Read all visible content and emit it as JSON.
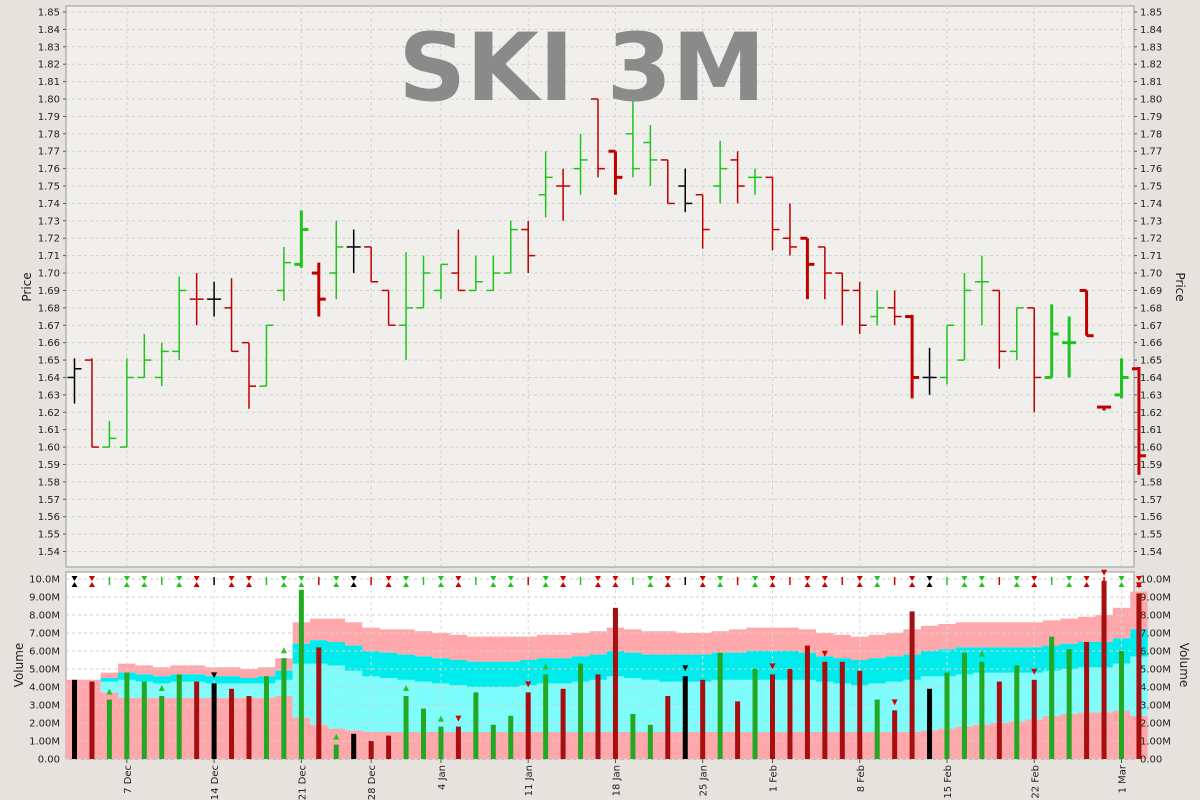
{
  "chart_data": {
    "type": "ohlc",
    "title": "SKI 3M",
    "price_panel": {
      "ylabel": "Price",
      "ylim": [
        1.53,
        1.85
      ],
      "tick_step": 0.01,
      "grid": true
    },
    "volume_panel": {
      "ylabel": "Volume",
      "ylim": [
        0,
        10000000
      ],
      "tick_labels": [
        "0.00",
        "1.00M",
        "2.00M",
        "3.00M",
        "4.00M",
        "5.00M",
        "6.00M",
        "7.00M",
        "8.00M",
        "9.00M",
        "10.0M"
      ],
      "grid": true
    },
    "x_tick_labels": [
      {
        "label": "7 Dec",
        "bar": 3
      },
      {
        "label": "14 Dec",
        "bar": 8
      },
      {
        "label": "21 Dec",
        "bar": 13
      },
      {
        "label": "28 Dec",
        "bar": 17
      },
      {
        "label": "4 Jan",
        "bar": 21
      },
      {
        "label": "11 Jan",
        "bar": 26
      },
      {
        "label": "18 Jan",
        "bar": 31
      },
      {
        "label": "25 Jan",
        "bar": 36
      },
      {
        "label": "1 Feb",
        "bar": 40
      },
      {
        "label": "8 Feb",
        "bar": 45
      },
      {
        "label": "15 Feb",
        "bar": 50
      },
      {
        "label": "22 Feb",
        "bar": 55
      },
      {
        "label": "1 Mar",
        "bar": 60
      }
    ],
    "colors": {
      "up": "#1ec41e",
      "down": "#c00000",
      "unchanged": "#000000",
      "band_outer": "#ffa8ab",
      "band_mid": "#7ffcfc",
      "band_inner": "#00ecec",
      "title": "#8a8a8a"
    },
    "bars": [
      {
        "o": 1.64,
        "h": 1.651,
        "l": 1.625,
        "c": 1.645,
        "v": 4.4,
        "d": "n"
      },
      {
        "o": 1.65,
        "h": 1.651,
        "l": 1.6,
        "c": 1.6,
        "v": 4.3,
        "d": "d"
      },
      {
        "o": 1.6,
        "h": 1.615,
        "l": 1.6,
        "c": 1.605,
        "v": 3.3,
        "d": "u"
      },
      {
        "o": 1.6,
        "h": 1.651,
        "l": 1.6,
        "c": 1.64,
        "v": 4.8,
        "d": "u"
      },
      {
        "o": 1.64,
        "h": 1.665,
        "l": 1.64,
        "c": 1.65,
        "v": 4.3,
        "d": "u"
      },
      {
        "o": 1.64,
        "h": 1.66,
        "l": 1.635,
        "c": 1.655,
        "v": 3.5,
        "d": "u"
      },
      {
        "o": 1.655,
        "h": 1.698,
        "l": 1.65,
        "c": 1.69,
        "v": 4.7,
        "d": "u"
      },
      {
        "o": 1.685,
        "h": 1.7,
        "l": 1.67,
        "c": 1.685,
        "v": 4.3,
        "d": "d"
      },
      {
        "o": 1.685,
        "h": 1.695,
        "l": 1.675,
        "c": 1.685,
        "v": 4.2,
        "d": "n"
      },
      {
        "o": 1.68,
        "h": 1.697,
        "l": 1.655,
        "c": 1.655,
        "v": 3.9,
        "d": "d"
      },
      {
        "o": 1.66,
        "h": 1.66,
        "l": 1.622,
        "c": 1.635,
        "v": 3.5,
        "d": "d"
      },
      {
        "o": 1.635,
        "h": 1.67,
        "l": 1.635,
        "c": 1.67,
        "v": 4.6,
        "d": "u"
      },
      {
        "o": 1.69,
        "h": 1.715,
        "l": 1.684,
        "c": 1.706,
        "v": 5.6,
        "d": "u"
      },
      {
        "o": 1.705,
        "h": 1.736,
        "l": 1.703,
        "c": 1.725,
        "v": 9.4,
        "d": "u"
      },
      {
        "o": 1.7,
        "h": 1.706,
        "l": 1.675,
        "c": 1.685,
        "v": 6.2,
        "d": "d"
      },
      {
        "o": 1.7,
        "h": 1.73,
        "l": 1.685,
        "c": 1.715,
        "v": 0.8,
        "d": "u"
      },
      {
        "o": 1.715,
        "h": 1.725,
        "l": 1.7,
        "c": 1.715,
        "v": 1.4,
        "d": "n"
      },
      {
        "o": 1.715,
        "h": 1.715,
        "l": 1.695,
        "c": 1.695,
        "v": 1.0,
        "d": "d"
      },
      {
        "o": 1.69,
        "h": 1.69,
        "l": 1.67,
        "c": 1.67,
        "v": 1.3,
        "d": "d"
      },
      {
        "o": 1.67,
        "h": 1.712,
        "l": 1.65,
        "c": 1.68,
        "v": 3.5,
        "d": "u"
      },
      {
        "o": 1.68,
        "h": 1.71,
        "l": 1.68,
        "c": 1.7,
        "v": 2.8,
        "d": "u"
      },
      {
        "o": 1.69,
        "h": 1.705,
        "l": 1.685,
        "c": 1.705,
        "v": 1.8,
        "d": "u"
      },
      {
        "o": 1.7,
        "h": 1.725,
        "l": 1.69,
        "c": 1.69,
        "v": 1.8,
        "d": "d"
      },
      {
        "o": 1.69,
        "h": 1.71,
        "l": 1.69,
        "c": 1.695,
        "v": 3.7,
        "d": "u"
      },
      {
        "o": 1.69,
        "h": 1.71,
        "l": 1.69,
        "c": 1.7,
        "v": 1.9,
        "d": "u"
      },
      {
        "o": 1.7,
        "h": 1.73,
        "l": 1.7,
        "c": 1.725,
        "v": 2.4,
        "d": "u"
      },
      {
        "o": 1.725,
        "h": 1.73,
        "l": 1.7,
        "c": 1.71,
        "v": 3.7,
        "d": "d"
      },
      {
        "o": 1.745,
        "h": 1.77,
        "l": 1.732,
        "c": 1.755,
        "v": 4.7,
        "d": "u"
      },
      {
        "o": 1.75,
        "h": 1.76,
        "l": 1.73,
        "c": 1.75,
        "v": 3.9,
        "d": "d"
      },
      {
        "o": 1.76,
        "h": 1.78,
        "l": 1.745,
        "c": 1.765,
        "v": 5.3,
        "d": "u"
      },
      {
        "o": 1.8,
        "h": 1.8,
        "l": 1.755,
        "c": 1.76,
        "v": 4.7,
        "d": "d"
      },
      {
        "o": 1.77,
        "h": 1.77,
        "l": 1.745,
        "c": 1.755,
        "v": 8.4,
        "d": "d"
      },
      {
        "o": 1.78,
        "h": 1.8,
        "l": 1.755,
        "c": 1.76,
        "v": 2.5,
        "d": "u"
      },
      {
        "o": 1.775,
        "h": 1.785,
        "l": 1.75,
        "c": 1.765,
        "v": 1.9,
        "d": "u"
      },
      {
        "o": 1.765,
        "h": 1.765,
        "l": 1.74,
        "c": 1.74,
        "v": 3.5,
        "d": "d"
      },
      {
        "o": 1.75,
        "h": 1.76,
        "l": 1.735,
        "c": 1.74,
        "v": 4.6,
        "d": "n"
      },
      {
        "o": 1.745,
        "h": 1.745,
        "l": 1.714,
        "c": 1.725,
        "v": 4.4,
        "d": "d"
      },
      {
        "o": 1.75,
        "h": 1.776,
        "l": 1.74,
        "c": 1.76,
        "v": 5.9,
        "d": "u"
      },
      {
        "o": 1.765,
        "h": 1.77,
        "l": 1.74,
        "c": 1.75,
        "v": 3.2,
        "d": "d"
      },
      {
        "o": 1.755,
        "h": 1.76,
        "l": 1.745,
        "c": 1.755,
        "v": 5.0,
        "d": "u"
      },
      {
        "o": 1.755,
        "h": 1.755,
        "l": 1.713,
        "c": 1.725,
        "v": 4.7,
        "d": "d"
      },
      {
        "o": 1.72,
        "h": 1.74,
        "l": 1.71,
        "c": 1.715,
        "v": 5.0,
        "d": "d"
      },
      {
        "o": 1.72,
        "h": 1.72,
        "l": 1.685,
        "c": 1.705,
        "v": 6.3,
        "d": "d"
      },
      {
        "o": 1.715,
        "h": 1.715,
        "l": 1.685,
        "c": 1.7,
        "v": 5.4,
        "d": "d"
      },
      {
        "o": 1.7,
        "h": 1.7,
        "l": 1.67,
        "c": 1.69,
        "v": 5.4,
        "d": "d"
      },
      {
        "o": 1.69,
        "h": 1.695,
        "l": 1.665,
        "c": 1.67,
        "v": 4.9,
        "d": "d"
      },
      {
        "o": 1.675,
        "h": 1.69,
        "l": 1.67,
        "c": 1.68,
        "v": 3.3,
        "d": "u"
      },
      {
        "o": 1.68,
        "h": 1.69,
        "l": 1.67,
        "c": 1.675,
        "v": 2.7,
        "d": "d"
      },
      {
        "o": 1.675,
        "h": 1.676,
        "l": 1.628,
        "c": 1.64,
        "v": 8.2,
        "d": "d"
      },
      {
        "o": 1.64,
        "h": 1.657,
        "l": 1.63,
        "c": 1.64,
        "v": 3.9,
        "d": "n"
      },
      {
        "o": 1.64,
        "h": 1.67,
        "l": 1.636,
        "c": 1.67,
        "v": 4.8,
        "d": "u"
      },
      {
        "o": 1.65,
        "h": 1.7,
        "l": 1.65,
        "c": 1.69,
        "v": 5.9,
        "d": "u"
      },
      {
        "o": 1.695,
        "h": 1.71,
        "l": 1.67,
        "c": 1.695,
        "v": 5.4,
        "d": "u"
      },
      {
        "o": 1.69,
        "h": 1.69,
        "l": 1.645,
        "c": 1.655,
        "v": 4.3,
        "d": "d"
      },
      {
        "o": 1.655,
        "h": 1.68,
        "l": 1.65,
        "c": 1.68,
        "v": 5.2,
        "d": "u"
      },
      {
        "o": 1.68,
        "h": 1.68,
        "l": 1.62,
        "c": 1.64,
        "v": 4.4,
        "d": "d"
      },
      {
        "o": 1.64,
        "h": 1.682,
        "l": 1.64,
        "c": 1.665,
        "v": 6.8,
        "d": "u"
      },
      {
        "o": 1.66,
        "h": 1.675,
        "l": 1.64,
        "c": 1.66,
        "v": 6.1,
        "d": "u"
      },
      {
        "o": 1.69,
        "h": 1.69,
        "l": 1.664,
        "c": 1.664,
        "v": 6.5,
        "d": "d"
      },
      {
        "o": 1.623,
        "h": 1.623,
        "l": 1.621,
        "c": 1.623,
        "v": 9.9,
        "d": "d"
      },
      {
        "o": 1.63,
        "h": 1.651,
        "l": 1.628,
        "c": 1.64,
        "v": 6.0,
        "d": "u"
      },
      {
        "o": 1.645,
        "h": 1.646,
        "l": 1.584,
        "c": 1.595,
        "v": 9.2,
        "d": "d"
      }
    ],
    "volume_bands": {
      "upper": [
        4.4,
        4.4,
        4.8,
        5.3,
        5.2,
        5.1,
        5.2,
        5.2,
        5.1,
        5.1,
        5.0,
        5.1,
        5.6,
        7.6,
        7.8,
        7.8,
        7.6,
        7.3,
        7.2,
        7.2,
        7.1,
        7.0,
        6.9,
        6.8,
        6.8,
        6.8,
        6.8,
        6.9,
        6.9,
        7.0,
        7.1,
        7.3,
        7.2,
        7.1,
        7.1,
        7.0,
        7.0,
        7.1,
        7.2,
        7.3,
        7.3,
        7.3,
        7.2,
        7.0,
        6.9,
        6.8,
        6.9,
        7.0,
        7.2,
        7.4,
        7.5,
        7.6,
        7.6,
        7.6,
        7.6,
        7.6,
        7.7,
        7.8,
        7.9,
        8.0,
        8.4,
        9.3
      ],
      "mid_upper": [
        4.4,
        4.4,
        4.5,
        4.8,
        4.7,
        4.6,
        4.7,
        4.7,
        4.6,
        4.6,
        4.5,
        4.6,
        4.9,
        6.4,
        6.6,
        6.5,
        6.3,
        6.0,
        5.9,
        5.8,
        5.7,
        5.6,
        5.5,
        5.4,
        5.4,
        5.4,
        5.5,
        5.6,
        5.6,
        5.7,
        5.8,
        6.0,
        5.9,
        5.8,
        5.8,
        5.8,
        5.8,
        5.9,
        5.9,
        6.0,
        6.0,
        6.0,
        5.9,
        5.7,
        5.6,
        5.5,
        5.6,
        5.7,
        5.8,
        6.0,
        6.1,
        6.2,
        6.2,
        6.2,
        6.2,
        6.2,
        6.3,
        6.4,
        6.5,
        6.5,
        6.7,
        7.2
      ],
      "mid": [
        4.4,
        4.4,
        4.3,
        4.4,
        4.3,
        4.2,
        4.3,
        4.3,
        4.2,
        4.2,
        4.2,
        4.2,
        4.4,
        5.3,
        5.3,
        5.2,
        4.9,
        4.6,
        4.5,
        4.4,
        4.3,
        4.2,
        4.1,
        4.0,
        4.0,
        4.0,
        4.1,
        4.2,
        4.2,
        4.3,
        4.4,
        4.6,
        4.5,
        4.4,
        4.3,
        4.3,
        4.3,
        4.4,
        4.4,
        4.4,
        4.4,
        4.4,
        4.4,
        4.3,
        4.2,
        4.1,
        4.2,
        4.3,
        4.4,
        4.6,
        4.6,
        4.7,
        4.8,
        4.8,
        4.8,
        4.8,
        4.9,
        5.0,
        5.1,
        5.1,
        5.3,
        5.7
      ],
      "mid_lower": [
        4.4,
        4.4,
        4.0,
        3.9,
        3.8,
        3.8,
        3.8,
        3.8,
        3.8,
        3.8,
        3.8,
        3.8,
        3.9,
        4.3,
        4.0,
        3.8,
        3.5,
        3.2,
        3.1,
        3.0,
        2.9,
        2.8,
        2.7,
        2.6,
        2.6,
        2.7,
        2.7,
        2.8,
        2.8,
        2.9,
        3.0,
        3.1,
        3.1,
        3.0,
        2.9,
        2.9,
        2.9,
        3.0,
        3.0,
        3.0,
        3.0,
        3.0,
        3.0,
        2.9,
        2.8,
        2.8,
        2.8,
        2.9,
        3.0,
        3.1,
        3.1,
        3.2,
        3.3,
        3.3,
        3.4,
        3.4,
        3.5,
        3.6,
        3.6,
        3.7,
        3.8,
        4.2
      ],
      "lower": [
        4.4,
        4.4,
        3.7,
        3.4,
        3.4,
        3.4,
        3.4,
        3.4,
        3.4,
        3.4,
        3.4,
        3.4,
        3.5,
        2.3,
        1.9,
        1.7,
        1.6,
        1.5,
        1.5,
        1.5,
        1.5,
        1.5,
        1.5,
        1.5,
        1.5,
        1.5,
        1.5,
        1.5,
        1.5,
        1.5,
        1.5,
        1.5,
        1.5,
        1.5,
        1.5,
        1.5,
        1.5,
        1.5,
        1.5,
        1.5,
        1.5,
        1.5,
        1.5,
        1.5,
        1.5,
        1.5,
        1.5,
        1.5,
        1.5,
        1.6,
        1.7,
        1.8,
        1.9,
        2.0,
        2.1,
        2.2,
        2.4,
        2.5,
        2.6,
        2.6,
        2.7,
        2.4
      ]
    }
  }
}
